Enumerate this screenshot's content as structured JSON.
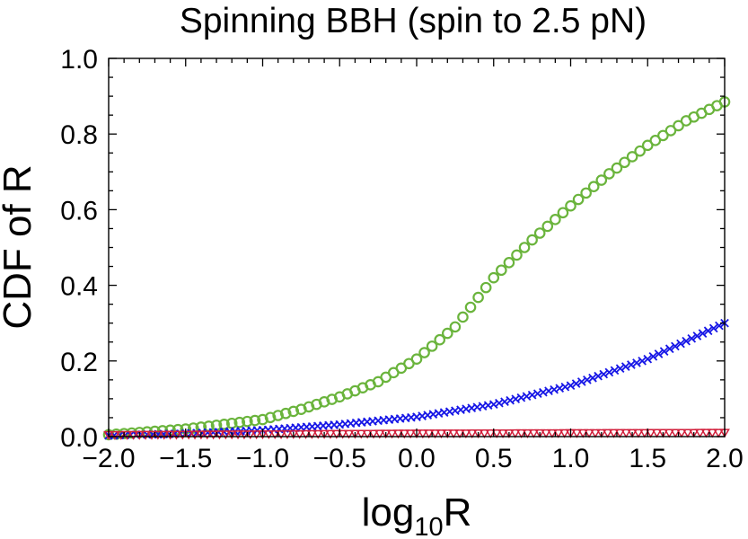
{
  "chart_data": {
    "type": "scatter",
    "title": "Spinning BBH (spin to 2.5 pN)",
    "xlabel": {
      "base": "log",
      "subscript": "10",
      "rest": "R"
    },
    "ylabel": "CDF of R",
    "xlim": [
      -2.0,
      2.0
    ],
    "ylim": [
      0.0,
      1.0
    ],
    "x_ticks": [
      -2.0,
      -1.5,
      -1.0,
      -0.5,
      0.0,
      0.5,
      1.0,
      1.5,
      2.0
    ],
    "x_tick_labels": [
      "−2.0",
      "−1.5",
      "−1.0",
      "−0.5",
      "0.0",
      "0.5",
      "1.0",
      "1.5",
      "2.0"
    ],
    "y_ticks": [
      0.0,
      0.2,
      0.4,
      0.6,
      0.8,
      1.0
    ],
    "y_tick_labels": [
      "0.0",
      "0.2",
      "0.4",
      "0.6",
      "0.8",
      "1.0"
    ],
    "x_minor_step": 0.1,
    "y_minor_step": 0.05,
    "grid": false,
    "legend": "none",
    "series": [
      {
        "marker": "circle",
        "color": "#6ab43c",
        "points_per_unit": 20,
        "x": [
          -2.0,
          -1.5,
          -1.0,
          -0.75,
          -0.5,
          -0.25,
          0.0,
          0.25,
          0.5,
          0.75,
          1.0,
          1.25,
          1.5,
          1.75,
          2.0
        ],
        "y": [
          0.005,
          0.02,
          0.045,
          0.072,
          0.105,
          0.145,
          0.205,
          0.29,
          0.42,
          0.52,
          0.61,
          0.695,
          0.77,
          0.835,
          0.885
        ]
      },
      {
        "marker": "x",
        "color": "#1717e6",
        "points_per_unit": 28,
        "x": [
          -2.0,
          -1.5,
          -1.0,
          -0.5,
          0.0,
          0.5,
          1.0,
          1.5,
          2.0
        ],
        "y": [
          0.003,
          0.008,
          0.017,
          0.032,
          0.052,
          0.085,
          0.135,
          0.205,
          0.3
        ]
      },
      {
        "marker": "triangle-down",
        "color": "#d2203c",
        "points_per_unit": 25,
        "x": [
          -2.0,
          -1.0,
          0.0,
          1.0,
          2.0
        ],
        "y": [
          0.004,
          0.006,
          0.008,
          0.009,
          0.01
        ]
      }
    ]
  }
}
